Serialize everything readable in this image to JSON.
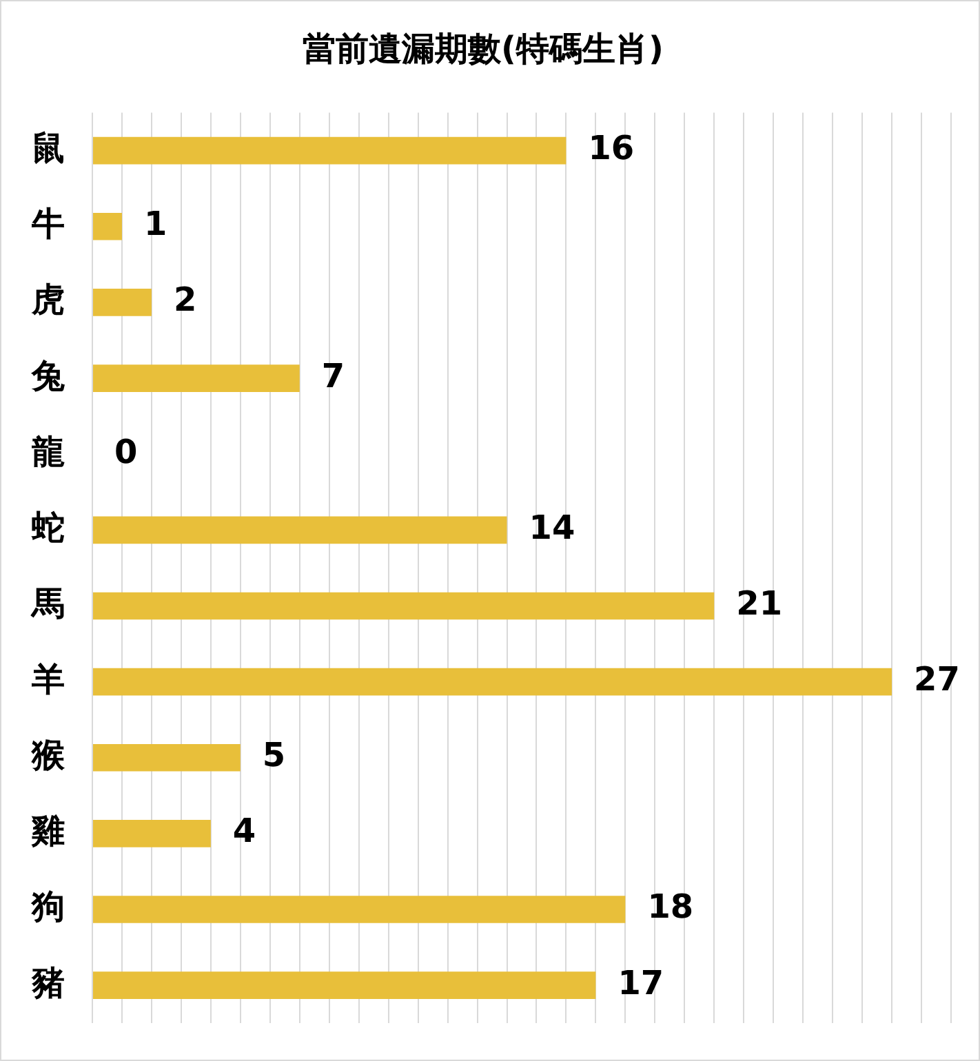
{
  "chart_data": {
    "type": "bar",
    "orientation": "horizontal",
    "title": "當前遺漏期數(特碼生肖)",
    "categories": [
      "鼠",
      "牛",
      "虎",
      "兔",
      "龍",
      "蛇",
      "馬",
      "羊",
      "猴",
      "雞",
      "狗",
      "豬"
    ],
    "values": [
      16,
      1,
      2,
      7,
      0,
      14,
      21,
      27,
      5,
      4,
      18,
      17
    ],
    "color": "#e8bf3a",
    "xlim": [
      0,
      29
    ],
    "xticks": [
      0,
      1,
      2,
      3,
      4,
      5,
      6,
      7,
      8,
      9,
      10,
      11,
      12,
      13,
      14,
      15,
      16,
      17,
      18,
      19,
      20,
      21,
      22,
      23,
      24,
      25,
      26,
      27,
      28,
      29
    ],
    "grid": "x",
    "tick_labels": "y",
    "data_labels": true
  }
}
